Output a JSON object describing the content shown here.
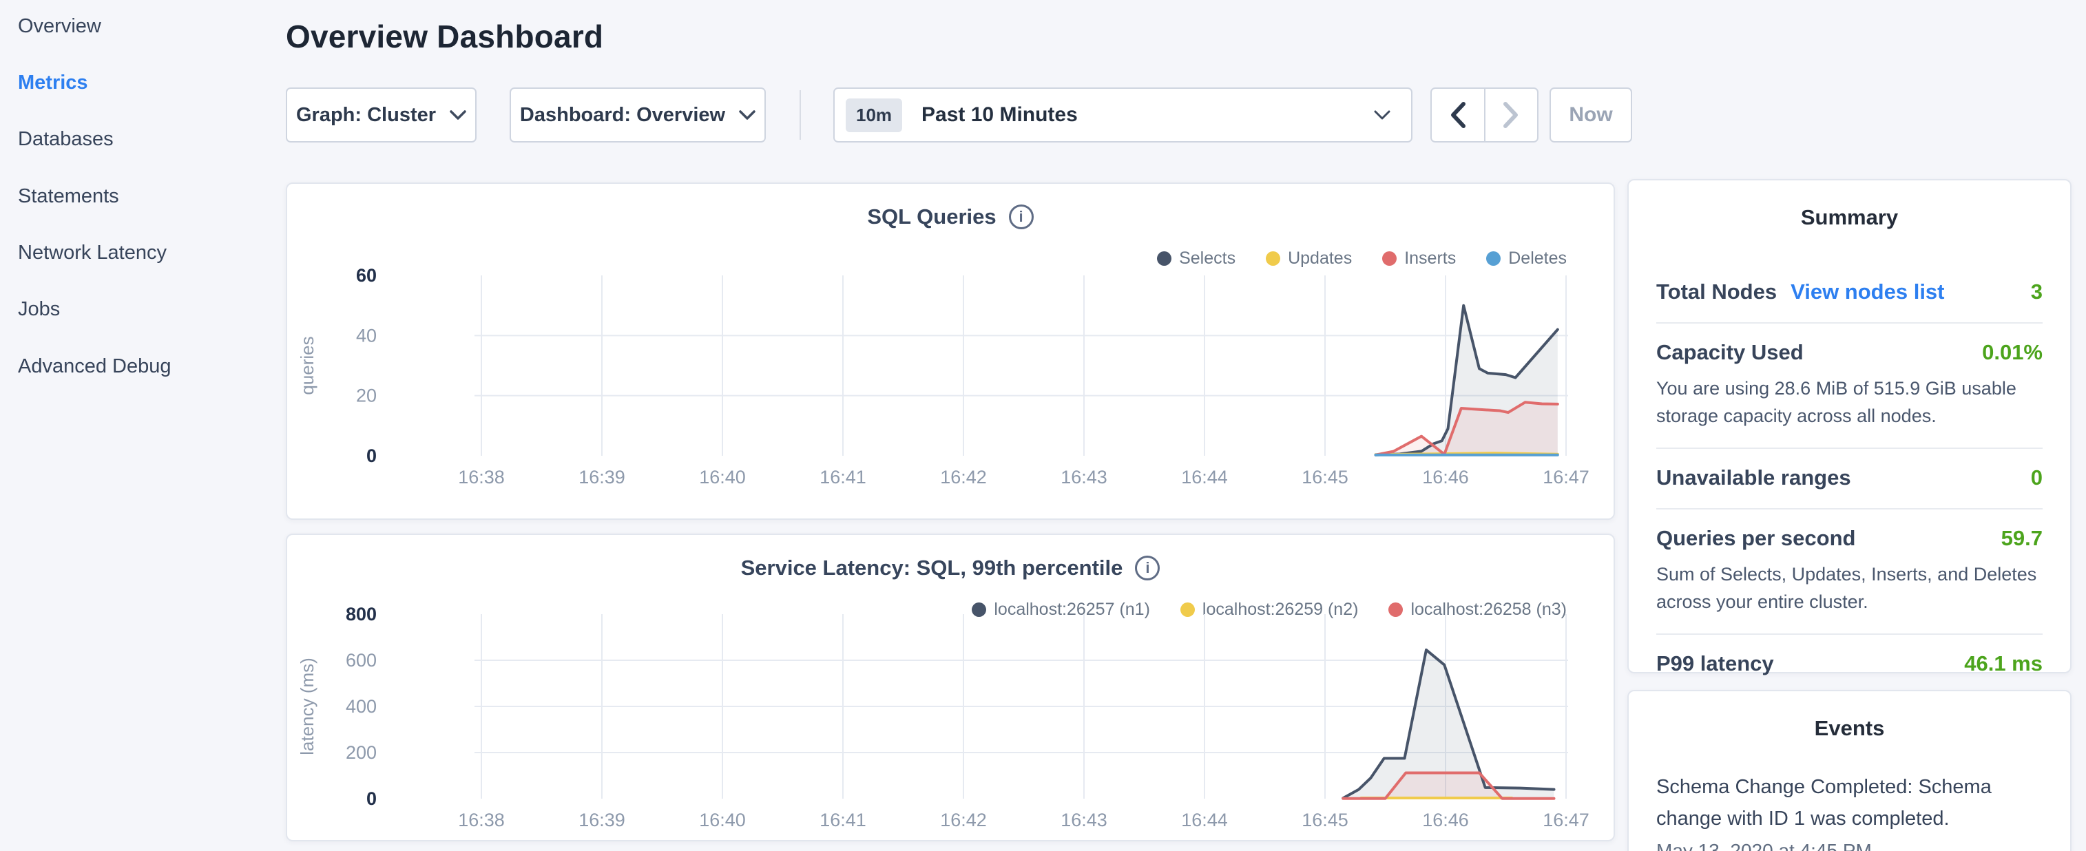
{
  "colors": {
    "accent_link_blue": "#2d7ff0",
    "metric_green": "#4ca41c",
    "series_navy": "#475469",
    "series_yellow": "#f0cb4b",
    "series_red": "#e06c6c",
    "series_blue": "#57a0d4"
  },
  "sidebar": {
    "items": [
      {
        "label": "Overview"
      },
      {
        "label": "Metrics",
        "active": true
      },
      {
        "label": "Databases"
      },
      {
        "label": "Statements"
      },
      {
        "label": "Network Latency"
      },
      {
        "label": "Jobs"
      },
      {
        "label": "Advanced Debug"
      }
    ]
  },
  "header": {
    "title": "Overview Dashboard"
  },
  "controls": {
    "graph_dropdown": {
      "label": "Graph: Cluster"
    },
    "dashboard_dropdown": {
      "label": "Dashboard: Overview"
    },
    "time_window": {
      "badge": "10m",
      "label": "Past 10 Minutes"
    },
    "now_button": {
      "label": "Now",
      "disabled": true
    }
  },
  "summary": {
    "title": "Summary",
    "rows": [
      {
        "label": "Total Nodes",
        "link": "View nodes list",
        "value": "3"
      },
      {
        "label": "Capacity Used",
        "value": "0.01%",
        "description": "You are using 28.6 MiB of 515.9 GiB usable storage capacity across all nodes."
      },
      {
        "label": "Unavailable ranges",
        "value": "0"
      },
      {
        "label": "Queries per second",
        "value": "59.7",
        "description": "Sum of Selects, Updates, Inserts, and Deletes across your entire cluster."
      },
      {
        "label": "P99 latency",
        "value": "46.1 ms"
      }
    ]
  },
  "events": {
    "title": "Events",
    "items": [
      {
        "message": "Schema Change Completed: Schema change with ID 1 was completed.",
        "timestamp": "May 13, 2020 at 4:45 PM"
      }
    ]
  },
  "chart_data": [
    {
      "type": "area",
      "title": "SQL Queries",
      "ylabel": "queries",
      "ylim": [
        0,
        60
      ],
      "yticks": [
        0,
        20,
        40,
        60
      ],
      "xticks": [
        "16:38",
        "16:39",
        "16:40",
        "16:41",
        "16:42",
        "16:43",
        "16:44",
        "16:45",
        "16:46",
        "16:47"
      ],
      "x_unit": "minutes after 16:00",
      "grid": true,
      "legend_position": "top-right",
      "series": [
        {
          "name": "Selects",
          "color": "#475469",
          "fill": "rgba(71,84,105,0.10)",
          "points": [
            [
              45.42,
              0.3
            ],
            [
              45.62,
              0.6
            ],
            [
              45.8,
              1.5
            ],
            [
              45.9,
              4
            ],
            [
              45.97,
              5
            ],
            [
              46.02,
              9
            ],
            [
              46.15,
              50
            ],
            [
              46.28,
              29
            ],
            [
              46.35,
              27.5
            ],
            [
              46.5,
              27
            ],
            [
              46.58,
              26
            ],
            [
              46.93,
              42
            ]
          ]
        },
        {
          "name": "Updates",
          "color": "#f0cb4b",
          "fill": null,
          "points": [
            [
              45.42,
              0.4
            ],
            [
              46.4,
              0.9
            ],
            [
              46.93,
              0.5
            ]
          ]
        },
        {
          "name": "Inserts",
          "color": "#e06c6c",
          "fill": "rgba(224,108,108,0.10)",
          "points": [
            [
              45.42,
              0.3
            ],
            [
              45.57,
              1.5
            ],
            [
              45.8,
              6.5
            ],
            [
              45.99,
              0.5
            ],
            [
              46.13,
              15.8
            ],
            [
              46.28,
              15.4
            ],
            [
              46.45,
              15.0
            ],
            [
              46.52,
              14.4
            ],
            [
              46.66,
              17.8
            ],
            [
              46.8,
              17.3
            ],
            [
              46.93,
              17.2
            ]
          ]
        },
        {
          "name": "Deletes",
          "color": "#57a0d4",
          "fill": null,
          "points": [
            [
              45.42,
              0.3
            ],
            [
              46.93,
              0.3
            ]
          ]
        }
      ]
    },
    {
      "type": "area",
      "title": "Service Latency: SQL, 99th percentile",
      "ylabel": "latency (ms)",
      "ylim": [
        0,
        800
      ],
      "yticks": [
        0,
        200,
        400,
        600,
        800
      ],
      "xticks": [
        "16:38",
        "16:39",
        "16:40",
        "16:41",
        "16:42",
        "16:43",
        "16:44",
        "16:45",
        "16:46",
        "16:47"
      ],
      "x_unit": "minutes after 16:00",
      "grid": true,
      "legend_position": "top-right",
      "series": [
        {
          "name": "localhost:26257 (n1)",
          "color": "#475469",
          "fill": "rgba(71,84,105,0.10)",
          "points": [
            [
              45.15,
              2
            ],
            [
              45.28,
              40
            ],
            [
              45.38,
              90
            ],
            [
              45.49,
              175
            ],
            [
              45.66,
              175
            ],
            [
              45.84,
              645
            ],
            [
              45.99,
              580
            ],
            [
              46.33,
              48
            ],
            [
              46.62,
              46
            ],
            [
              46.9,
              40
            ]
          ]
        },
        {
          "name": "localhost:26259 (n2)",
          "color": "#f0cb4b",
          "fill": null,
          "points": [
            [
              45.3,
              3
            ],
            [
              46.55,
              3
            ]
          ]
        },
        {
          "name": "localhost:26258 (n3)",
          "color": "#e06c6c",
          "fill": "rgba(224,108,108,0.10)",
          "points": [
            [
              45.15,
              1
            ],
            [
              45.5,
              1
            ],
            [
              45.67,
              112
            ],
            [
              46.28,
              112
            ],
            [
              46.47,
              1
            ],
            [
              46.9,
              1
            ]
          ]
        }
      ]
    }
  ]
}
